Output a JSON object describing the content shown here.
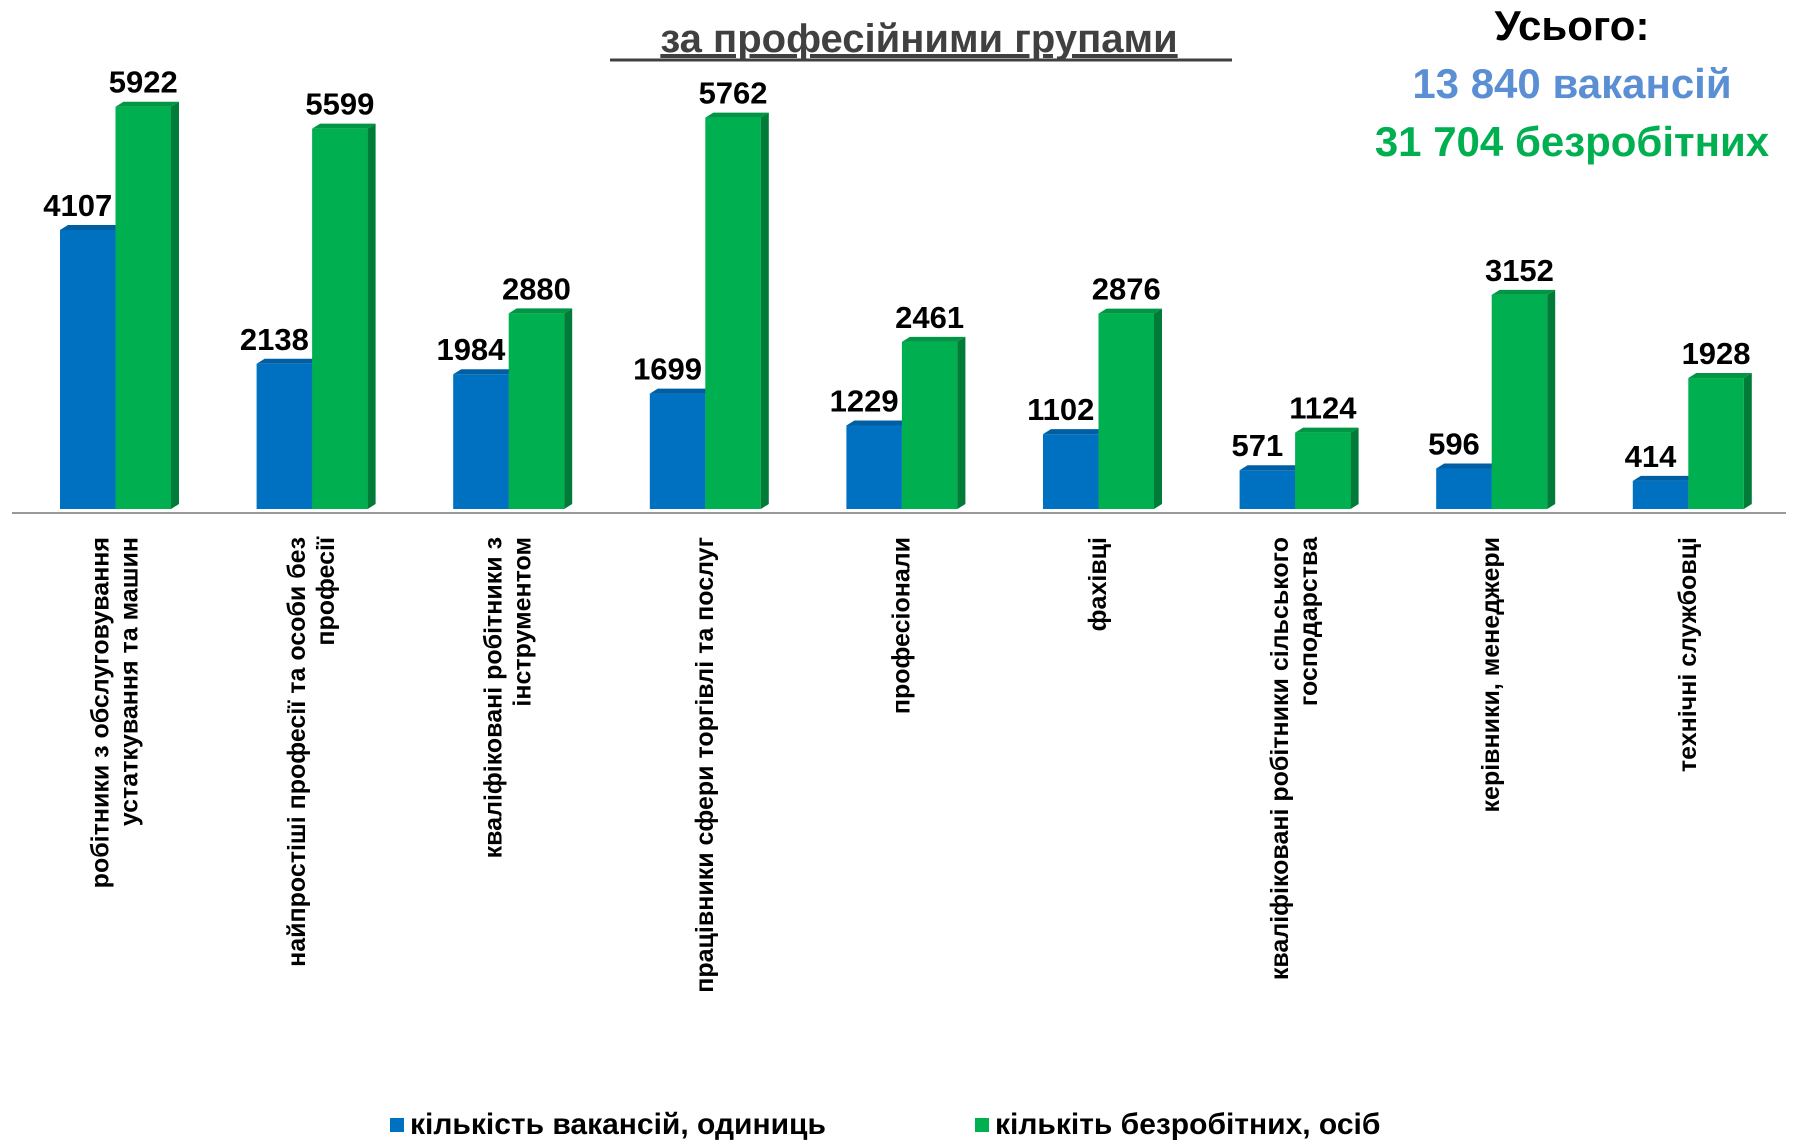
{
  "chart_data": {
    "type": "bar",
    "title": "за професійними групами",
    "annotations": [
      "Усього:",
      "13 840 вакансій",
      "31 704 безробітних"
    ],
    "categories": [
      "робітники з обслуговування устаткування та машин",
      "найпростіші професії та особи без професії",
      "кваліфіковані робітники з інструментом",
      "працівники сфери торгівлі та послуг",
      "професіонали",
      "фахівці",
      "кваліфіковані робітники сільського господарства",
      "керівники, менеджери",
      "технічні службовці"
    ],
    "series": [
      {
        "name": "кількість вакансій, одиниць",
        "color": "#0070c0",
        "values": [
          4107,
          2138,
          1984,
          1699,
          1229,
          1102,
          571,
          596,
          414
        ]
      },
      {
        "name": "кількіть безробітних, осіб",
        "color": "#00b050",
        "values": [
          5922,
          5599,
          2880,
          5762,
          2461,
          2876,
          1124,
          3152,
          1928
        ]
      }
    ]
  }
}
